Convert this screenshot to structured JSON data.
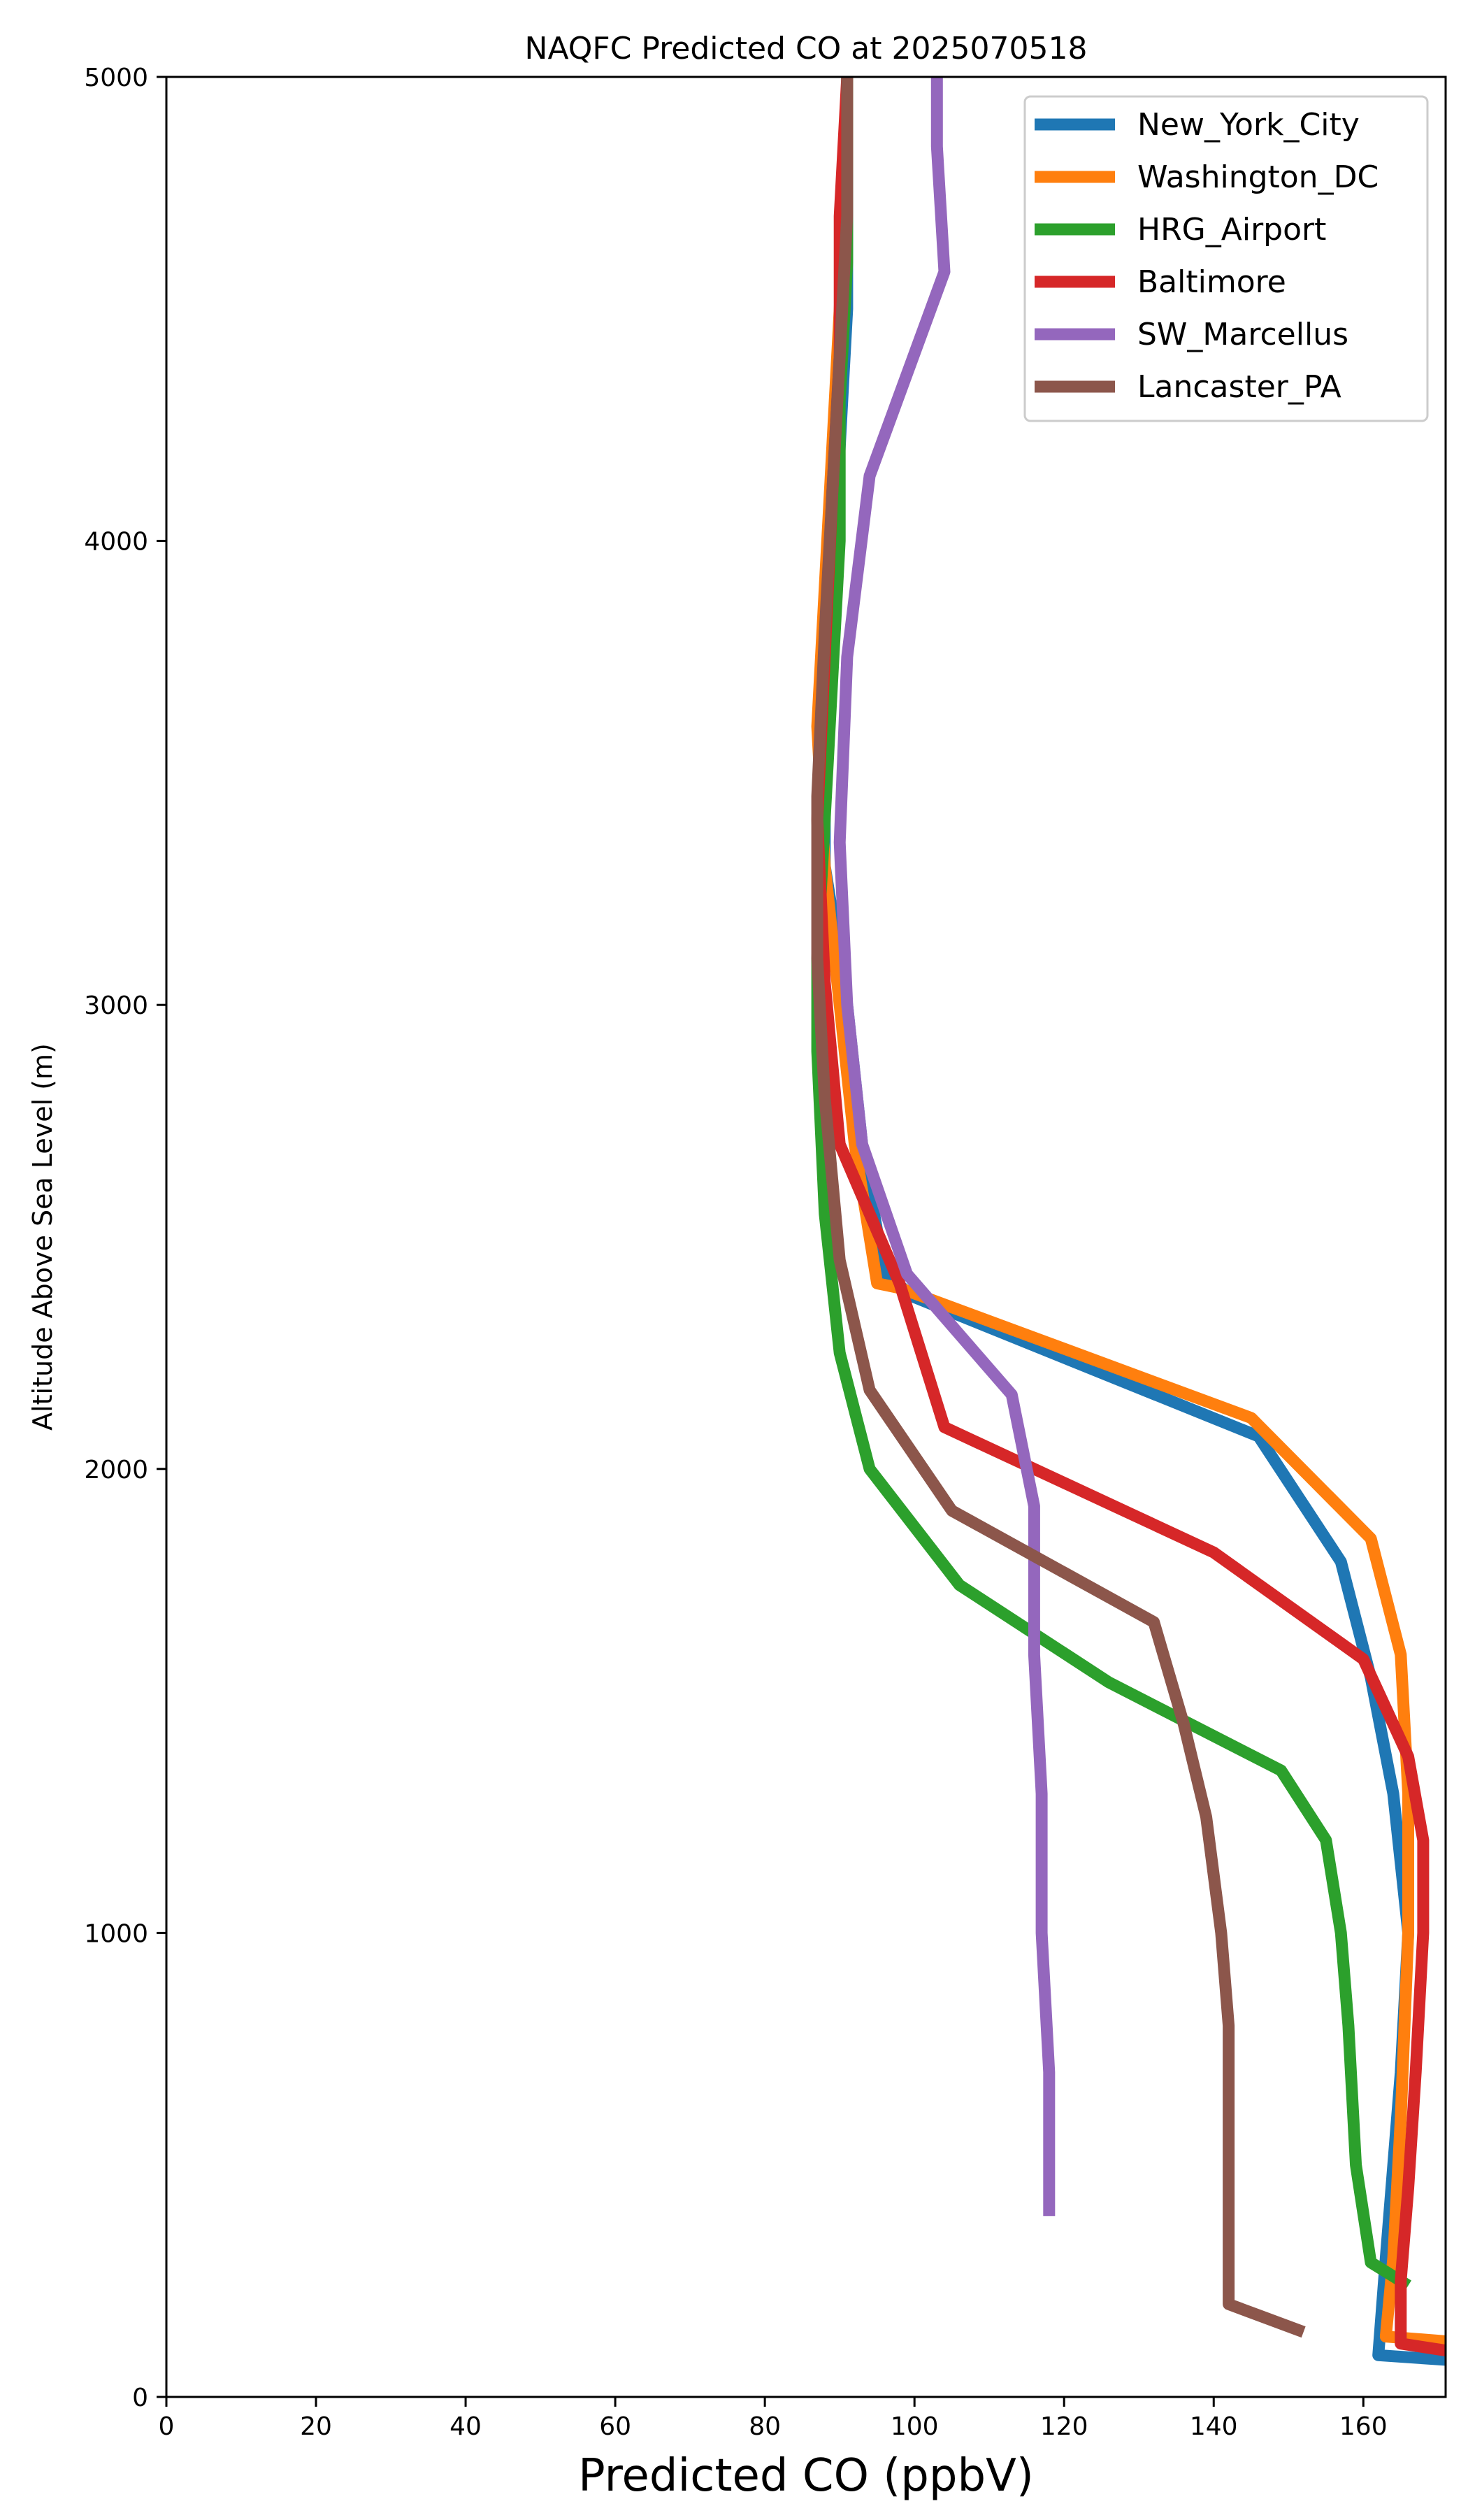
{
  "chart_data": {
    "type": "line",
    "title": "NAQFC Predicted CO at 2025070518",
    "xlabel": "Predicted CO (ppbV)",
    "ylabel": "Altitude Above Sea Level (m)",
    "xlim": [
      0,
      171
    ],
    "ylim": [
      0,
      5000
    ],
    "xticks": [
      0,
      20,
      40,
      60,
      80,
      100,
      120,
      140,
      160
    ],
    "yticks": [
      0,
      1000,
      2000,
      3000,
      4000,
      5000
    ],
    "grid": false,
    "legend_position": "upper right",
    "series": [
      {
        "name": "New_York_City",
        "color": "#1f77b4",
        "points": [
          [
            171,
            80
          ],
          [
            162,
            90
          ],
          [
            163,
            300
          ],
          [
            165,
            700
          ],
          [
            166,
            1000
          ],
          [
            165,
            1150
          ],
          [
            164,
            1300
          ],
          [
            161,
            1550
          ],
          [
            157,
            1800
          ],
          [
            146,
            2070
          ],
          [
            100,
            2370
          ],
          [
            96,
            2420
          ],
          [
            93,
            2700
          ],
          [
            91,
            3000
          ],
          [
            88,
            3300
          ],
          [
            88,
            3600
          ],
          [
            89,
            3900
          ],
          [
            90,
            4200
          ],
          [
            91,
            4500
          ],
          [
            91,
            4800
          ],
          [
            91,
            5000
          ]
        ]
      },
      {
        "name": "Washington_DC",
        "color": "#ff7f0e",
        "points": [
          [
            171,
            120
          ],
          [
            163,
            130
          ],
          [
            164,
            300
          ],
          [
            165,
            600
          ],
          [
            166,
            1000
          ],
          [
            166,
            1300
          ],
          [
            165,
            1600
          ],
          [
            161,
            1850
          ],
          [
            145,
            2110
          ],
          [
            98,
            2390
          ],
          [
            95,
            2400
          ],
          [
            92,
            2700
          ],
          [
            90,
            3000
          ],
          [
            88,
            3300
          ],
          [
            87,
            3600
          ],
          [
            88,
            3900
          ],
          [
            89,
            4200
          ],
          [
            90,
            4500
          ],
          [
            91,
            4800
          ],
          [
            91,
            5000
          ]
        ]
      },
      {
        "name": "HRG_Airport",
        "color": "#2ca02c",
        "points": [
          [
            166,
            240
          ],
          [
            161,
            290
          ],
          [
            159,
            500
          ],
          [
            158,
            800
          ],
          [
            157,
            1000
          ],
          [
            155,
            1200
          ],
          [
            149,
            1350
          ],
          [
            126,
            1540
          ],
          [
            106,
            1750
          ],
          [
            94,
            2000
          ],
          [
            90,
            2250
          ],
          [
            88,
            2550
          ],
          [
            87,
            2900
          ],
          [
            87,
            3100
          ],
          [
            88,
            3400
          ],
          [
            89,
            3700
          ],
          [
            90,
            4000
          ],
          [
            90,
            4300
          ],
          [
            91,
            4600
          ],
          [
            91,
            4900
          ],
          [
            91,
            5000
          ]
        ]
      },
      {
        "name": "Baltimore",
        "color": "#d62728",
        "points": [
          [
            171,
            100
          ],
          [
            165,
            115
          ],
          [
            165,
            250
          ],
          [
            166,
            450
          ],
          [
            167,
            700
          ],
          [
            168,
            1000
          ],
          [
            168,
            1200
          ],
          [
            166,
            1380
          ],
          [
            160,
            1590
          ],
          [
            140,
            1820
          ],
          [
            104,
            2090
          ],
          [
            98,
            2400
          ],
          [
            90,
            2700
          ],
          [
            88,
            3050
          ],
          [
            87,
            3400
          ],
          [
            88,
            3750
          ],
          [
            89,
            4100
          ],
          [
            90,
            4400
          ],
          [
            90,
            4700
          ],
          [
            91,
            5000
          ]
        ]
      },
      {
        "name": "SW_Marcellus",
        "color": "#9467bd",
        "points": [
          [
            118,
            390
          ],
          [
            118,
            460
          ],
          [
            118,
            700
          ],
          [
            117,
            1000
          ],
          [
            117,
            1300
          ],
          [
            116,
            1600
          ],
          [
            116,
            1920
          ],
          [
            113,
            2160
          ],
          [
            99,
            2420
          ],
          [
            93,
            2700
          ],
          [
            91,
            3000
          ],
          [
            90,
            3350
          ],
          [
            91,
            3750
          ],
          [
            94,
            4140
          ],
          [
            104,
            4580
          ],
          [
            103,
            4850
          ],
          [
            103,
            5000
          ]
        ]
      },
      {
        "name": "Lancaster_PA",
        "color": "#8c564b",
        "points": [
          [
            152,
            140
          ],
          [
            142,
            200
          ],
          [
            142,
            500
          ],
          [
            142,
            800
          ],
          [
            141,
            1000
          ],
          [
            139,
            1250
          ],
          [
            136,
            1450
          ],
          [
            132,
            1670
          ],
          [
            105,
            1910
          ],
          [
            94,
            2170
          ],
          [
            90,
            2450
          ],
          [
            88,
            2800
          ],
          [
            87,
            3100
          ],
          [
            87,
            3450
          ],
          [
            88,
            3800
          ],
          [
            89,
            4100
          ],
          [
            90,
            4400
          ],
          [
            91,
            4700
          ],
          [
            91,
            5000
          ]
        ]
      }
    ]
  }
}
